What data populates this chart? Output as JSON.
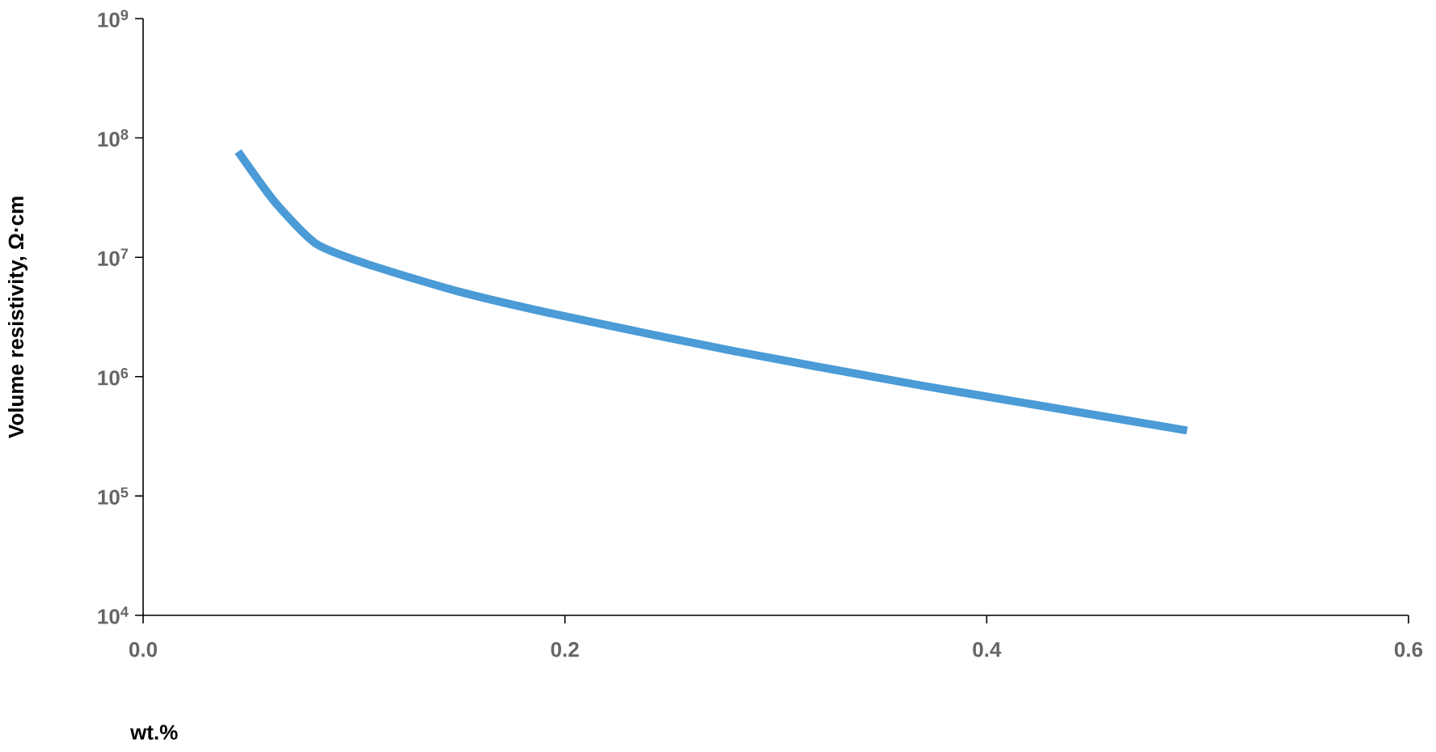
{
  "chart_data": {
    "type": "line",
    "xlabel": "wt.%",
    "ylabel": "Volume resistivity, Ω·cm",
    "x": [
      0.045,
      0.0625,
      0.082,
      0.106,
      0.149,
      0.2,
      0.28,
      0.366,
      0.4,
      0.495
    ],
    "series": [
      {
        "color": "#4a9bd6",
        "values": [
          77000000,
          29000000,
          13000000,
          8800000,
          5200000,
          3200000,
          1640000,
          860000,
          680000,
          354000
        ]
      }
    ],
    "log": "y",
    "xlim": [
      0,
      0.6
    ],
    "ylim": [
      10000,
      1000000000
    ],
    "xticks": [
      {
        "value": 0,
        "label": "0.0"
      },
      0.2,
      0.4,
      0.6
    ],
    "yticks": [
      {
        "value": 10000,
        "label": "10$^{4}$"
      },
      {
        "value": 100000,
        "label": "10$^{5}$"
      },
      {
        "value": 1000000,
        "label": "10$^{6}$"
      },
      {
        "value": 10000000,
        "label": "10$^{7}$"
      },
      {
        "value": 100000000,
        "label": "10$^{8}$"
      },
      {
        "value": 1000000000,
        "label": "10$^{9}$"
      }
    ],
    "grid": false,
    "marker": "none",
    "line_style": "solid"
  }
}
